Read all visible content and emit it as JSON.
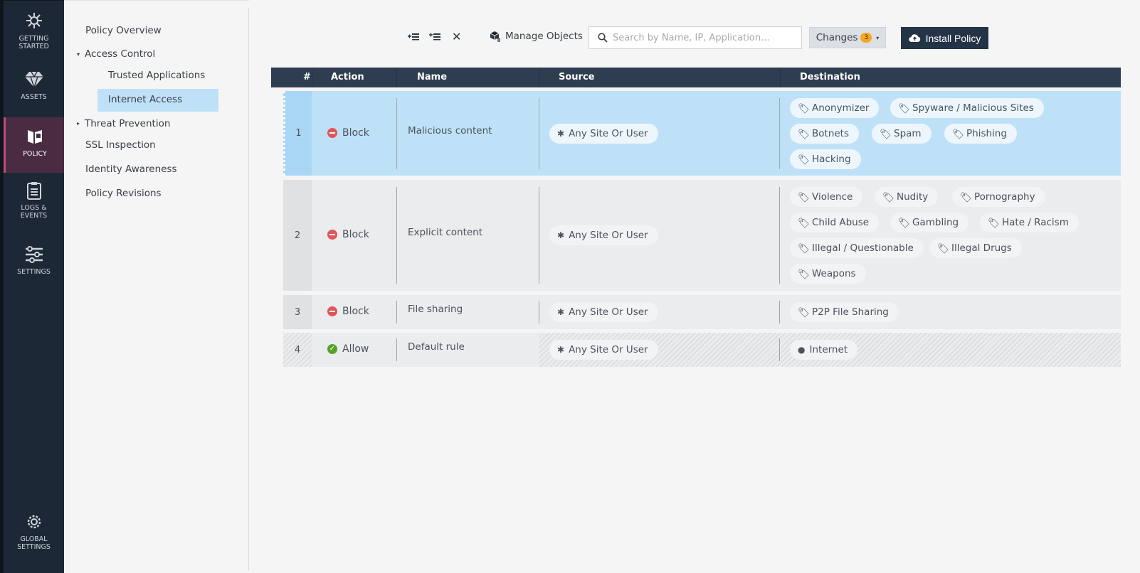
{
  "rail": {
    "items": [
      {
        "label1": "GETTING",
        "label2": "STARTED",
        "icon": "getting-started-icon"
      },
      {
        "label1": "ASSETS",
        "label2": "",
        "icon": "diamond-icon"
      },
      {
        "label1": "POLICY",
        "label2": "",
        "icon": "policy-book-icon"
      },
      {
        "label1": "LOGS &",
        "label2": "EVENTS",
        "icon": "clipboard-icon"
      },
      {
        "label1": "SETTINGS",
        "label2": "",
        "icon": "sliders-icon"
      },
      {
        "label1": "GLOBAL",
        "label2": "SETTINGS",
        "icon": "gear-icon"
      }
    ],
    "active_color": "#c04a7c"
  },
  "subnav": {
    "policy_overview": "Policy Overview",
    "access_control": "Access Control",
    "trusted_applications": "Trusted Applications",
    "internet_access": "Internet Access",
    "threat_prevention": "Threat Prevention",
    "ssl_inspection": "SSL Inspection",
    "identity_awareness": "Identity Awareness",
    "policy_revisions": "Policy Revisions"
  },
  "toolbar": {
    "manage_objects": "Manage Objects",
    "search_placeholder": "Search by Name, IP, Application...",
    "changes_label": "Changes",
    "changes_count": "3",
    "install_label": "Install Policy"
  },
  "table": {
    "headers": {
      "num": "#",
      "action": "Action",
      "name": "Name",
      "source": "Source",
      "destination": "Destination"
    },
    "rows": [
      {
        "num": "1",
        "action": "Block",
        "name": "Malicious content",
        "source": "Any Site Or User",
        "destinations": [
          "Anonymizer",
          "Spyware / Malicious Sites",
          "Botnets",
          "Spam",
          "Phishing",
          "Hacking"
        ]
      },
      {
        "num": "2",
        "action": "Block",
        "name": "Explicit content",
        "source": "Any Site Or User",
        "destinations": [
          "Violence",
          "Nudity",
          "Pornography",
          "Child Abuse",
          "Gambling",
          "Hate / Racism",
          "Illegal / Questionable",
          "Illegal Drugs",
          "Weapons"
        ]
      },
      {
        "num": "3",
        "action": "Block",
        "name": "File sharing",
        "source": "Any Site Or User",
        "destinations": [
          "P2P File Sharing"
        ]
      },
      {
        "num": "4",
        "action": "Allow",
        "name": "Default rule",
        "source": "Any Site Or User",
        "destinations": [
          "Internet"
        ]
      }
    ]
  },
  "colors": {
    "selected_row": "#bfe1f8",
    "block": "#e0555a",
    "allow": "#5aa02c",
    "header": "#2f3d51"
  }
}
